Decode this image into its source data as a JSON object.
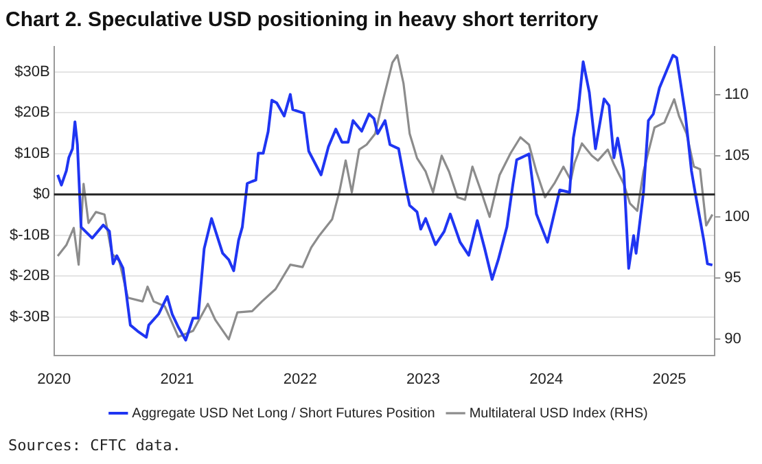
{
  "chart_data": {
    "type": "line",
    "title": "Chart 2. Speculative USD positioning in heavy short territory",
    "annotations": [
      "Sources: CFTC data."
    ],
    "xlim": [
      2020,
      2025.37
    ],
    "xticks": [
      2020,
      2021,
      2022,
      2023,
      2024,
      2025
    ],
    "ylim": [
      -39.4,
      36.2
    ],
    "yticks": [
      {
        "value": -30,
        "label": "$-30B"
      },
      {
        "value": -20,
        "label": "$-20B"
      },
      {
        "value": -10,
        "label": "$-10B"
      },
      {
        "value": 0,
        "label": "$0"
      },
      {
        "value": 10,
        "label": "$10B"
      },
      {
        "value": 20,
        "label": "$20B"
      },
      {
        "value": 30,
        "label": "$30B"
      }
    ],
    "y2lim": [
      88.7,
      113.9
    ],
    "y2ticks": [
      90,
      95,
      100,
      105,
      110
    ],
    "grid": "y",
    "legend": "bottom",
    "marker": "none",
    "line_style": "solid",
    "ref_lines": [
      {
        "axis": "y",
        "value": 0,
        "color": "#222222"
      }
    ],
    "series": [
      {
        "name": "Aggregate USD Net Long / Short Futures Position",
        "color": "#1f35f2",
        "x": [
          2020.03,
          2020.06,
          2020.1,
          2020.12,
          2020.15,
          2020.17,
          2020.19,
          2020.22,
          2020.31,
          2020.4,
          2020.45,
          2020.48,
          2020.51,
          2020.56,
          2020.62,
          2020.68,
          2020.75,
          2020.77,
          2020.85,
          2020.92,
          2020.96,
          2021.01,
          2021.07,
          2021.13,
          2021.17,
          2021.22,
          2021.28,
          2021.37,
          2021.42,
          2021.46,
          2021.5,
          2021.53,
          2021.57,
          2021.61,
          2021.64,
          2021.66,
          2021.7,
          2021.74,
          2021.77,
          2021.81,
          2021.87,
          2021.92,
          2021.94,
          2022.03,
          2022.07,
          2022.17,
          2022.23,
          2022.29,
          2022.34,
          2022.39,
          2022.43,
          2022.5,
          2022.56,
          2022.6,
          2022.63,
          2022.69,
          2022.73,
          2022.8,
          2022.86,
          2022.89,
          2022.95,
          2022.98,
          2023.02,
          2023.1,
          2023.17,
          2023.22,
          2023.3,
          2023.37,
          2023.44,
          2023.5,
          2023.56,
          2023.61,
          2023.68,
          2023.73,
          2023.76,
          2023.86,
          2023.92,
          2024.01,
          2024.11,
          2024.19,
          2024.22,
          2024.26,
          2024.3,
          2024.35,
          2024.4,
          2024.47,
          2024.51,
          2024.55,
          2024.58,
          2024.63,
          2024.67,
          2024.71,
          2024.73,
          2024.79,
          2024.83,
          2024.87,
          2024.92,
          2025.03,
          2025.06,
          2025.13,
          2025.18,
          2025.21,
          2025.28,
          2025.31,
          2025.35
        ],
        "values": [
          4.8,
          2.3,
          5.8,
          9,
          11.2,
          17.8,
          12.2,
          -8,
          -10.7,
          -7.5,
          -9,
          -17,
          -15,
          -18,
          -32,
          -33.5,
          -35,
          -32,
          -29.3,
          -25,
          -29.3,
          -32.5,
          -35.7,
          -30.3,
          -30.3,
          -13.3,
          -5.9,
          -14.4,
          -16,
          -18.7,
          -11.2,
          -8,
          2.7,
          3.2,
          3.5,
          10.1,
          10.1,
          15.4,
          23.1,
          22.4,
          19.2,
          24.5,
          20.8,
          19.9,
          10.6,
          4.8,
          11.7,
          16,
          12.8,
          12.8,
          18.1,
          15.5,
          19.7,
          18.6,
          14.9,
          18.1,
          12.2,
          11.2,
          1.6,
          -2.7,
          -4.3,
          -8.5,
          -5.9,
          -12.3,
          -9.1,
          -4.8,
          -11.7,
          -14.9,
          -6.4,
          -13.3,
          -20.8,
          -16,
          -8,
          2.7,
          8.5,
          9.9,
          -4.8,
          -11.7,
          1.1,
          0.5,
          13.8,
          20.8,
          32.5,
          25,
          11.2,
          23.4,
          21.8,
          9,
          13.8,
          5.8,
          -18.1,
          -10.1,
          -14.4,
          0.5,
          18.1,
          19.7,
          26.1,
          34.1,
          33.5,
          19.7,
          5.8,
          0.5,
          -11.2,
          -17,
          -17.3
        ]
      },
      {
        "name": "Multilateral USD Index (RHS)",
        "color": "#8c8c8c",
        "axis": "y2",
        "x": [
          2020.03,
          2020.1,
          2020.16,
          2020.2,
          2020.24,
          2020.28,
          2020.34,
          2020.41,
          2020.47,
          2020.53,
          2020.6,
          2020.72,
          2020.76,
          2020.81,
          2020.9,
          2021.01,
          2021.13,
          2021.25,
          2021.31,
          2021.42,
          2021.49,
          2021.61,
          2021.69,
          2021.8,
          2021.92,
          2022.02,
          2022.09,
          2022.15,
          2022.26,
          2022.32,
          2022.37,
          2022.42,
          2022.48,
          2022.54,
          2022.61,
          2022.67,
          2022.75,
          2022.79,
          2022.84,
          2022.89,
          2022.95,
          2023.02,
          2023.08,
          2023.15,
          2023.21,
          2023.28,
          2023.34,
          2023.4,
          2023.47,
          2023.54,
          2023.62,
          2023.71,
          2023.79,
          2023.86,
          2023.92,
          2023.99,
          2024.07,
          2024.14,
          2024.2,
          2024.23,
          2024.29,
          2024.37,
          2024.42,
          2024.5,
          2024.55,
          2024.63,
          2024.68,
          2024.74,
          2024.79,
          2024.88,
          2024.96,
          2025.04,
          2025.08,
          2025.14,
          2025.2,
          2025.25,
          2025.3,
          2025.35
        ],
        "values": [
          96.8,
          97.7,
          99.1,
          96.1,
          102.7,
          99.5,
          100.4,
          100.2,
          97,
          96.4,
          93.4,
          93.1,
          94.3,
          93.1,
          92.7,
          90.2,
          90.7,
          92.9,
          91.6,
          90,
          92.2,
          92.3,
          93.1,
          94.1,
          96.1,
          95.9,
          97.5,
          98.4,
          99.8,
          102.1,
          104.6,
          102,
          105.5,
          105.9,
          106.8,
          109.4,
          112.6,
          113.2,
          110.9,
          106.8,
          104.8,
          103.7,
          102,
          105,
          103.7,
          101.6,
          101.4,
          104.1,
          102.1,
          100,
          103.4,
          105.2,
          106.5,
          105.9,
          103.7,
          101.6,
          102.8,
          104.1,
          103,
          104.4,
          106,
          105,
          104.6,
          105.5,
          104.3,
          102.7,
          101.1,
          100.5,
          103.7,
          107.3,
          107.7,
          109.6,
          108.2,
          106.8,
          104.1,
          103.9,
          99.3,
          100.2
        ]
      }
    ]
  }
}
